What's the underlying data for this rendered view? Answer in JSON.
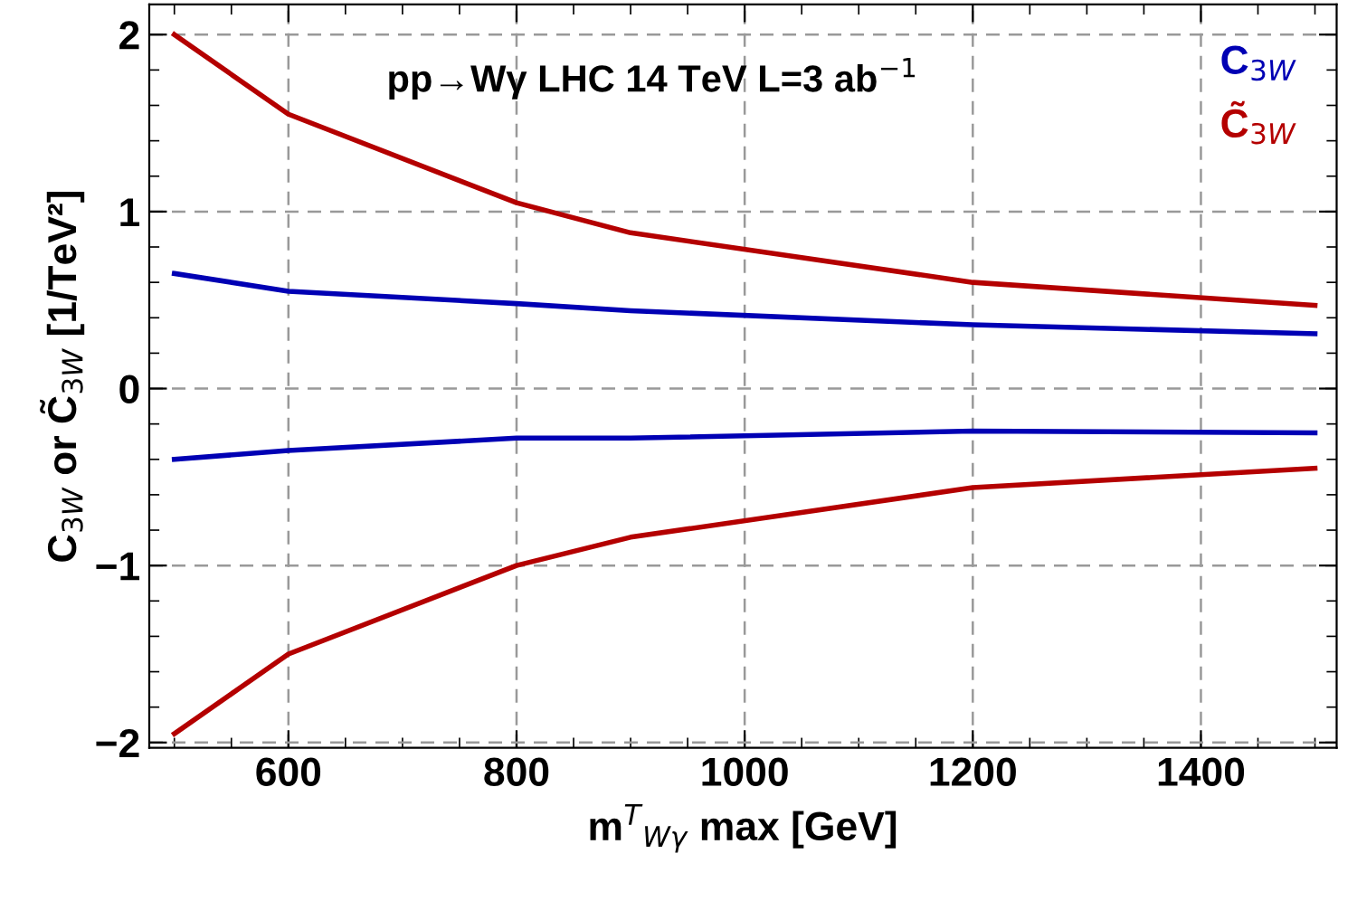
{
  "chart_data": {
    "type": "line",
    "xlabel": "m$^{T}$$_{Wγ}$ max [GeV]",
    "ylabel": "C$_{3W}$ or C̃$_{3W}$ [1/TeV²]",
    "annotations": [
      "pp→Wγ LHC 14 TeV L=3 ab$^{−1}$"
    ],
    "x": [
      500,
      600,
      800,
      900,
      1200,
      1500
    ],
    "series": [
      {
        "name": "C$_{3W}$",
        "color": "#0000b4",
        "values": [
          0.65,
          0.55,
          0.48,
          0.44,
          0.36,
          0.31
        ]
      },
      {
        "name": "C̃$_{3W}$",
        "color": "#b40000",
        "values": [
          2.0,
          1.55,
          1.05,
          0.88,
          0.6,
          0.47
        ]
      },
      {
        "color": "#0000b4",
        "values": [
          -0.4,
          -0.35,
          -0.28,
          -0.28,
          -0.24,
          -0.25
        ]
      },
      {
        "color": "#b40000",
        "values": [
          -1.95,
          -1.5,
          -1.0,
          -0.84,
          -0.56,
          -0.45
        ]
      }
    ],
    "xlim": [
      478,
      1519
    ],
    "xticks": [
      600,
      800,
      1000,
      1200,
      1400
    ],
    "ylim": [
      -2.03,
      2.17
    ],
    "yticks": [
      {
        "value": -2,
        "label": "−2"
      },
      {
        "value": -1,
        "label": "−1"
      },
      0,
      1,
      2
    ],
    "grid": true,
    "legend": "top right",
    "marker": "none",
    "line_style": "solid"
  }
}
